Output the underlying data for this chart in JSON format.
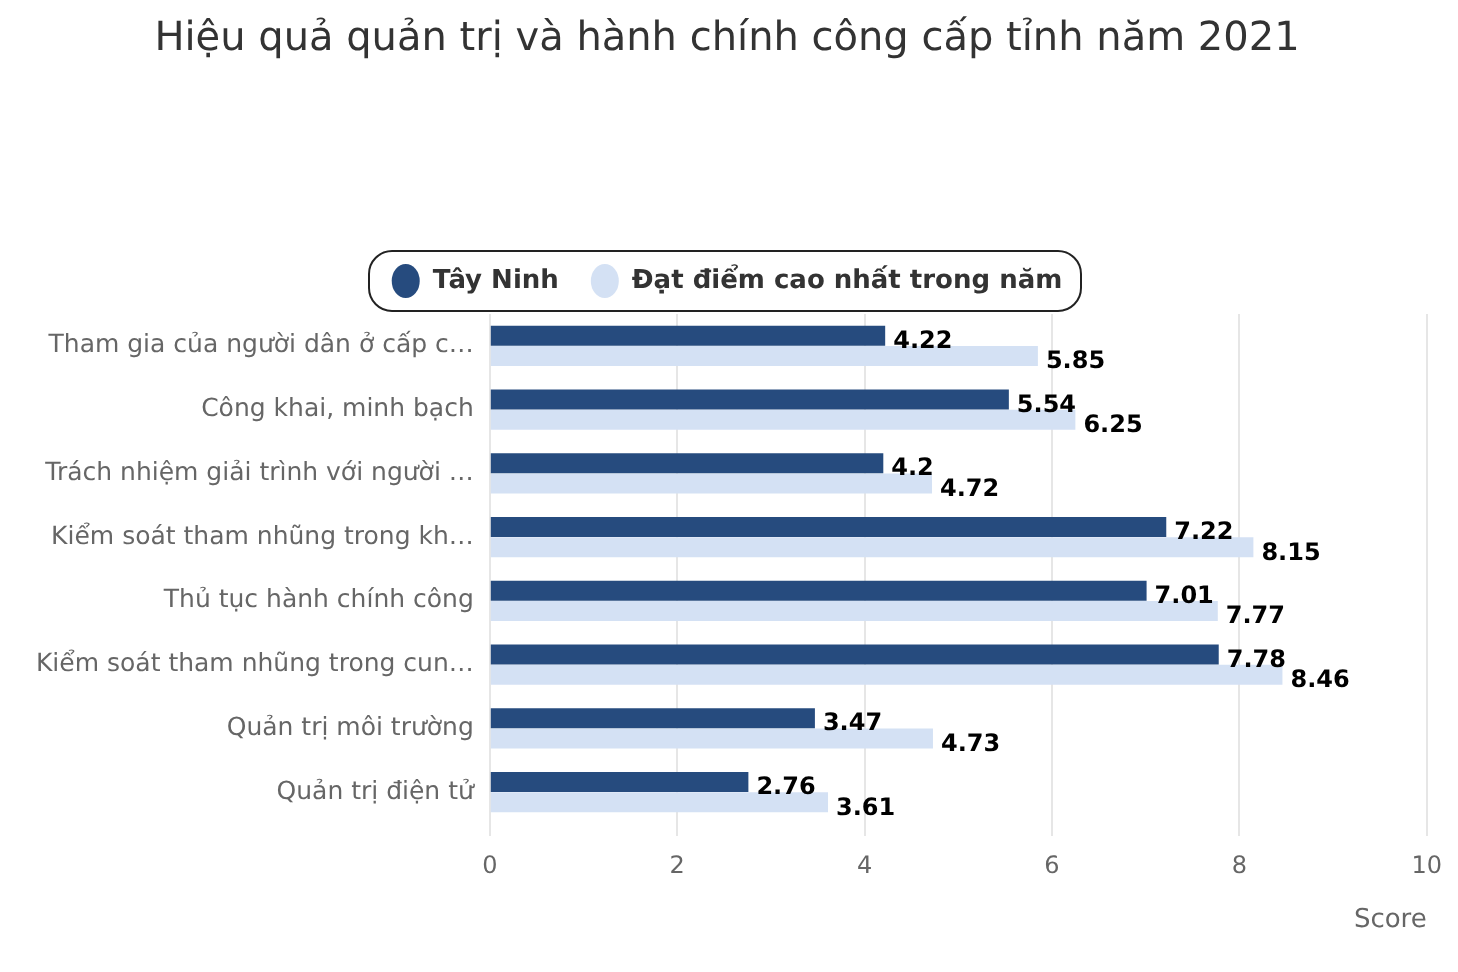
{
  "chart_data": {
    "type": "bar",
    "orientation": "horizontal",
    "title": "Hiệu quả quản trị và hành chính công cấp tỉnh năm 2021",
    "xlabel": "Score",
    "categories": [
      "Tham gia của người dân ở cấp c…",
      "Công khai, minh bạch",
      "Trách nhiệm giải trình với người …",
      "Kiểm soát tham nhũng trong kh…",
      "Thủ tục hành chính công",
      "Kiểm soát tham nhũng trong cun…",
      "Quản trị môi trường",
      "Quản trị điện tử"
    ],
    "series": [
      {
        "name": "Tây Ninh",
        "color": "#264b7e",
        "values": [
          4.22,
          5.54,
          4.2,
          7.22,
          7.01,
          7.78,
          3.47,
          2.76
        ]
      },
      {
        "name": "Đạt điểm cao nhất trong năm",
        "color": "#d4e1f4",
        "values": [
          5.85,
          6.25,
          4.72,
          8.15,
          7.77,
          8.46,
          4.73,
          3.61
        ]
      }
    ],
    "xlim": [
      0,
      10
    ],
    "xticks": [
      0,
      2,
      4,
      6,
      8,
      10
    ],
    "grid": "x",
    "legend": "top",
    "data_labels": true
  }
}
